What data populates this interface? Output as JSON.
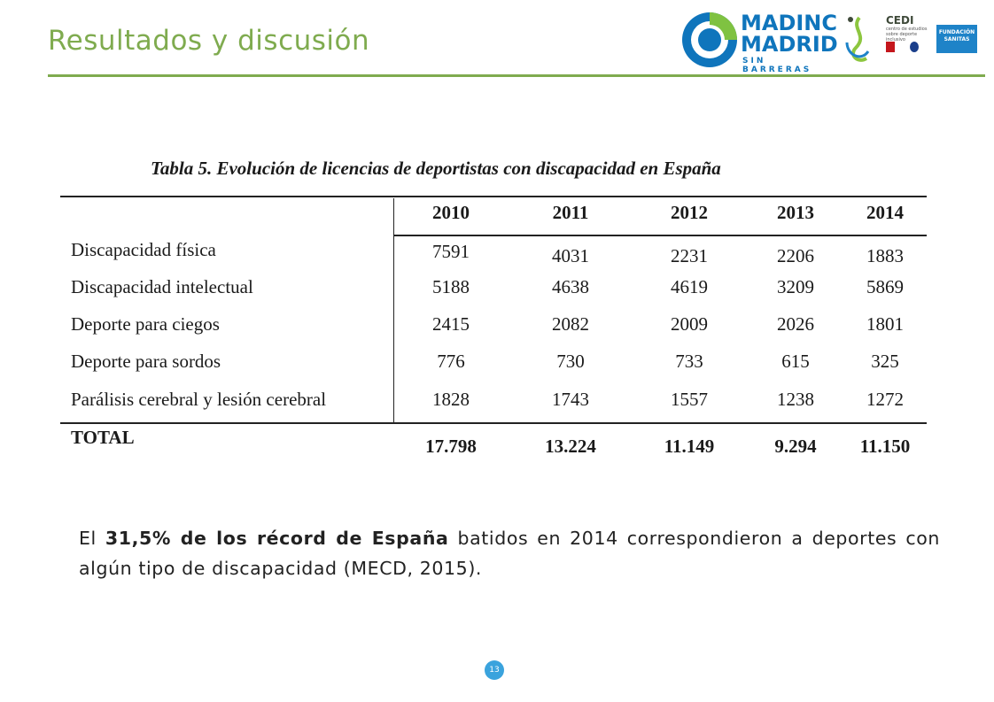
{
  "slide": {
    "title": "Resultados y discusión",
    "page_number": "13"
  },
  "logos": {
    "madinc_line1": "MADINC",
    "madinc_line2": "MADRID",
    "madinc_sub": "SIN BARRERAS",
    "cedi_title": "CEDI",
    "cedi_subtitle": "centro de estudios sobre deporte inclusivo",
    "sanitas_line1": "FUNDACIÓN",
    "sanitas_line2": "SANITAS"
  },
  "table": {
    "caption": "Tabla 5. Evolución de licencias de deportistas con discapacidad en España",
    "years": [
      "2010",
      "2011",
      "2012",
      "2013",
      "2014"
    ],
    "rows": [
      {
        "label": "Discapacidad física",
        "values": [
          "7591",
          "4031",
          "2231",
          "2206",
          "1883"
        ]
      },
      {
        "label": "Discapacidad intelectual",
        "values": [
          "5188",
          "4638",
          "4619",
          "3209",
          "5869"
        ]
      },
      {
        "label": "Deporte para ciegos",
        "values": [
          "2415",
          "2082",
          "2009",
          "2026",
          "1801"
        ]
      },
      {
        "label": "Deporte para sordos",
        "values": [
          "776",
          "730",
          "733",
          "615",
          "325"
        ]
      },
      {
        "label": "Parálisis cerebral y lesión cerebral",
        "values": [
          "1828",
          "1743",
          "1557",
          "1238",
          "1272"
        ]
      }
    ],
    "total": {
      "label": "TOTAL",
      "values": [
        "17.798",
        "13.224",
        "11.149",
        "9.294",
        "11.150"
      ]
    }
  },
  "note": {
    "prefix": "El ",
    "highlight": "31,5% de los récord de España",
    "suffix": " batidos en 2014 correspondieron a deportes con algún tipo de discapacidad (MECD, 2015)."
  },
  "colors": {
    "accent_green": "#7fab4f",
    "brand_blue": "#0f75bc",
    "badge_blue": "#3aa3dd"
  }
}
